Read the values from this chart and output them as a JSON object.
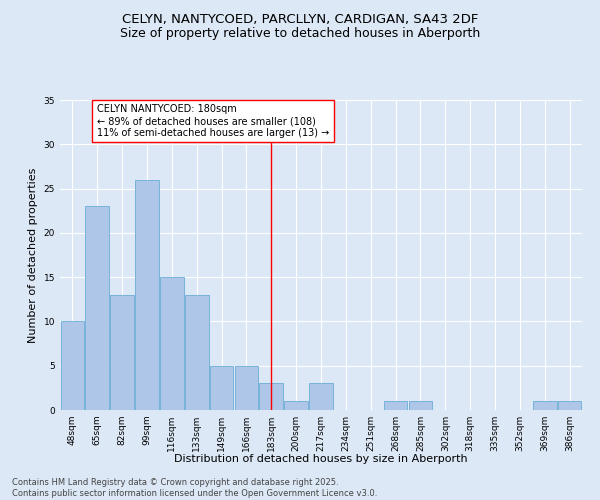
{
  "title1": "CELYN, NANTYCOED, PARCLLYN, CARDIGAN, SA43 2DF",
  "title2": "Size of property relative to detached houses in Aberporth",
  "xlabel": "Distribution of detached houses by size in Aberporth",
  "ylabel": "Number of detached properties",
  "categories": [
    "48sqm",
    "65sqm",
    "82sqm",
    "99sqm",
    "116sqm",
    "133sqm",
    "149sqm",
    "166sqm",
    "183sqm",
    "200sqm",
    "217sqm",
    "234sqm",
    "251sqm",
    "268sqm",
    "285sqm",
    "302sqm",
    "318sqm",
    "335sqm",
    "352sqm",
    "369sqm",
    "386sqm"
  ],
  "values": [
    10,
    23,
    13,
    26,
    15,
    13,
    5,
    5,
    3,
    1,
    3,
    0,
    0,
    1,
    1,
    0,
    0,
    0,
    0,
    1,
    1
  ],
  "bar_color": "#aec6e8",
  "bar_edgecolor": "#6aaed6",
  "vline_x": 8,
  "vline_color": "red",
  "annotation_text": "CELYN NANTYCOED: 180sqm\n← 89% of detached houses are smaller (108)\n11% of semi-detached houses are larger (13) →",
  "annotation_box_facecolor": "white",
  "annotation_box_edgecolor": "red",
  "ylim": [
    0,
    35
  ],
  "yticks": [
    0,
    5,
    10,
    15,
    20,
    25,
    30,
    35
  ],
  "footnote": "Contains HM Land Registry data © Crown copyright and database right 2025.\nContains public sector information licensed under the Open Government Licence v3.0.",
  "bg_color": "#dce8f5",
  "plot_bg_color": "#dce8f5",
  "title_fontsize": 9.5,
  "subtitle_fontsize": 9,
  "axis_label_fontsize": 8,
  "tick_fontsize": 6.5,
  "annotation_fontsize": 7,
  "footnote_fontsize": 6
}
